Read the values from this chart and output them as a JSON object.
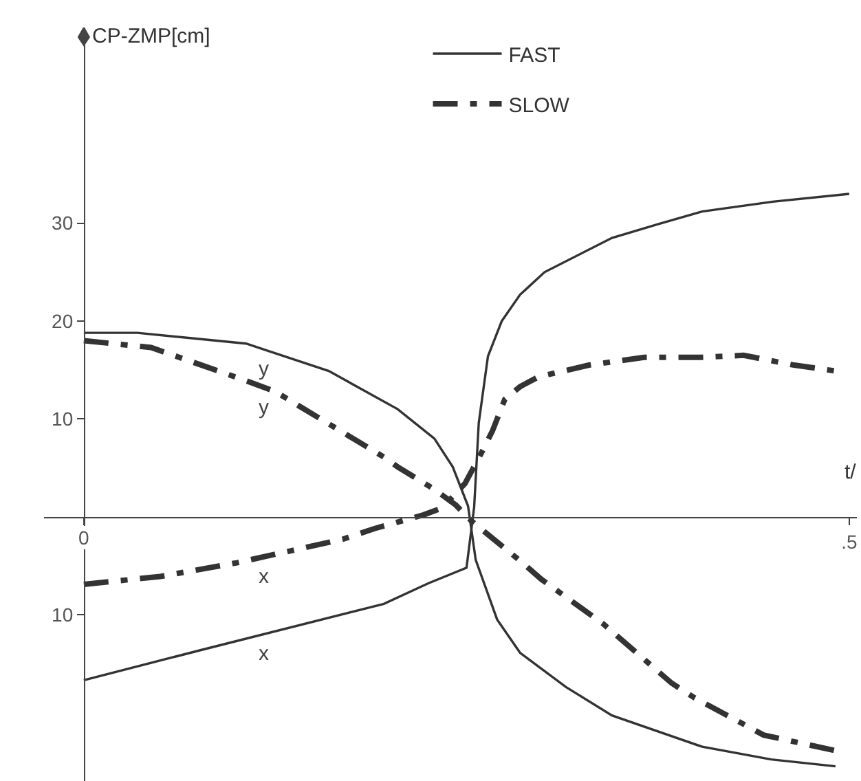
{
  "chart_data": {
    "type": "line",
    "xlabel": "t/",
    "ylabel": "CP-ZMP[cm]",
    "xlim": [
      -0.026,
      0.505
    ],
    "ylim": [
      -27,
      50
    ],
    "xticks": [
      {
        "value": 0,
        "label": "0"
      },
      {
        "value": 0.5,
        "label": ".5"
      }
    ],
    "yticks": [
      {
        "value": -10,
        "label": "10"
      },
      {
        "value": 10,
        "label": "10"
      },
      {
        "value": 20,
        "label": "20"
      },
      {
        "value": 30,
        "label": "30"
      }
    ],
    "legend": "top",
    "series": [
      {
        "name": "FAST",
        "color": "#333333",
        "line_style": "solid",
        "x": [
          0,
          0.035,
          0.106,
          0.16,
          0.205,
          0.229,
          0.241,
          0.251,
          0.256,
          0.27,
          0.285,
          0.315,
          0.345,
          0.404,
          0.449,
          0.491
        ],
        "values": [
          18.8,
          18.8,
          17.7,
          14.9,
          11.0,
          8.0,
          5.1,
          1.1,
          -4.4,
          -10.5,
          -13.9,
          -17.4,
          -20.3,
          -23.5,
          -24.8,
          -25.5
        ]
      },
      {
        "color": "#333333",
        "line_style": "solid",
        "x": [
          0,
          0.077,
          0.196,
          0.225,
          0.25,
          0.253,
          0.255,
          0.258,
          0.264,
          0.273,
          0.285,
          0.301,
          0.345,
          0.375,
          0.404,
          0.45,
          0.5
        ],
        "values": [
          -16.7,
          -13.6,
          -8.9,
          -6.8,
          -5.2,
          -1.5,
          1.0,
          9.6,
          16.4,
          20.0,
          22.7,
          25.0,
          28.5,
          29.9,
          31.2,
          32.2,
          33.0
        ]
      },
      {
        "name": "SLOW",
        "color": "#333333",
        "line_style": "dashdot",
        "x": [
          0,
          0.044,
          0.106,
          0.125,
          0.178,
          0.196,
          0.205,
          0.229,
          0.243,
          0.253,
          0.285,
          0.299,
          0.339,
          0.384,
          0.399,
          0.444,
          0.491
        ],
        "values": [
          18.0,
          17.3,
          13.9,
          12.8,
          7.8,
          6.1,
          5.1,
          2.8,
          1.2,
          -0.4,
          -4.5,
          -6.4,
          -10.9,
          -17.0,
          -18.5,
          -22.3,
          -23.9
        ]
      },
      {
        "color": "#333333",
        "line_style": "dashdot",
        "x": [
          0,
          0.05,
          0.1,
          0.169,
          0.19,
          0.222,
          0.234,
          0.249,
          0.261,
          0.267,
          0.275,
          0.285,
          0.297,
          0.33,
          0.366,
          0.404,
          0.431,
          0.464,
          0.491
        ],
        "values": [
          -6.9,
          -6.1,
          -4.7,
          -2.3,
          -1.2,
          0.2,
          0.9,
          3.4,
          6.9,
          8.8,
          12.0,
          13.3,
          14.3,
          15.5,
          16.3,
          16.3,
          16.5,
          15.5,
          14.9
        ]
      }
    ],
    "annotations": [
      "y",
      "x",
      "y",
      "x"
    ]
  }
}
